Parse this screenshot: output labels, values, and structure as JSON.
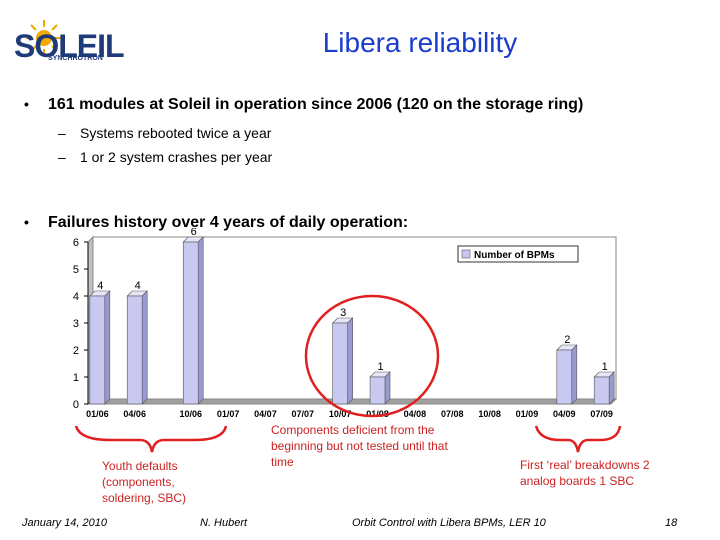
{
  "header": {
    "logo_word": "SOLEIL",
    "logo_sub": "SYNCHROTRON",
    "title": "Libera reliability"
  },
  "bullets": [
    {
      "text": "161 modules at Soleil in operation since 2006 (120 on the storage ring)",
      "subs": [
        "Systems rebooted twice a year",
        "1 or 2 system crashes per year"
      ]
    },
    {
      "text": "Failures history over 4 years of daily operation:"
    }
  ],
  "chart_data": {
    "type": "bar",
    "categories": [
      "01/06",
      "",
      "04/06",
      "",
      "",
      "10/06",
      "",
      "01/07",
      "",
      "04/07",
      "",
      "07/07",
      "",
      "10/07",
      "",
      "01/08",
      "",
      "04/08",
      "",
      "07/08",
      "",
      "10/08",
      "",
      "01/09",
      "",
      "04/09",
      "",
      "07/09"
    ],
    "values": [
      4,
      0,
      4,
      0,
      0,
      6,
      0,
      0,
      0,
      0,
      0,
      0,
      0,
      3,
      0,
      1,
      0,
      0,
      0,
      0,
      0,
      0,
      0,
      0,
      0,
      2,
      0,
      1
    ],
    "yticks": [
      "0",
      "1",
      "2",
      "3",
      "4",
      "5",
      "6"
    ],
    "ylim": [
      0,
      6
    ],
    "series": [
      {
        "name": "Number of BPMs"
      }
    ],
    "legend_position": "top-right",
    "bar_color": "#c8c8f0",
    "highlight_color": "#e02020"
  },
  "annotations": {
    "youth": "Youth defaults (components, soldering, SBC)",
    "components": "Components deficient from the beginning but not tested until that time",
    "breakdowns": "First ‘real’ breakdowns 2 analog boards 1 SBC"
  },
  "footer": {
    "date": "January 14, 2010",
    "author": "N. Hubert",
    "talk": "Orbit Control with Libera BPMs, LER 10",
    "page": "18"
  },
  "colors": {
    "title": "#1a3ccd",
    "caption": "#cc2222",
    "logo": "#1f3a78",
    "sun": "#f2a900"
  }
}
